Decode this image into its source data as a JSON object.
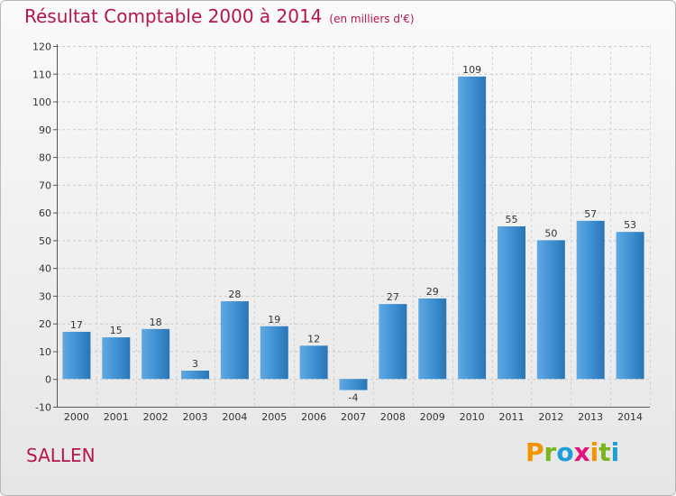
{
  "header": {
    "title": "Résultat Comptable 2000 à 2014",
    "unit": "(en milliers d'€)"
  },
  "footer": {
    "place": "SALLEN",
    "logo": [
      "P",
      "r",
      "o",
      "x",
      "i",
      "t",
      "i"
    ],
    "logo_colors": [
      "#f29400",
      "#7ab51d",
      "#1b9ed9",
      "#e2127a",
      "#f29400",
      "#7ab51d",
      "#1b9ed9"
    ]
  },
  "chart_data": {
    "type": "bar",
    "title": "Résultat Comptable 2000 à 2014",
    "subtitle": "(en milliers d'€)",
    "categories": [
      "2000",
      "2001",
      "2002",
      "2003",
      "2004",
      "2005",
      "2006",
      "2007",
      "2008",
      "2009",
      "2010",
      "2011",
      "2012",
      "2013",
      "2014"
    ],
    "values": [
      17,
      15,
      18,
      3,
      28,
      19,
      12,
      -4,
      27,
      29,
      109,
      55,
      50,
      57,
      53
    ],
    "ylim": [
      -10,
      120
    ],
    "yticks": [
      -10,
      0,
      10,
      20,
      30,
      40,
      50,
      60,
      70,
      80,
      90,
      100,
      110,
      120
    ],
    "grid": true,
    "bar_color": "#3d8fd1"
  }
}
